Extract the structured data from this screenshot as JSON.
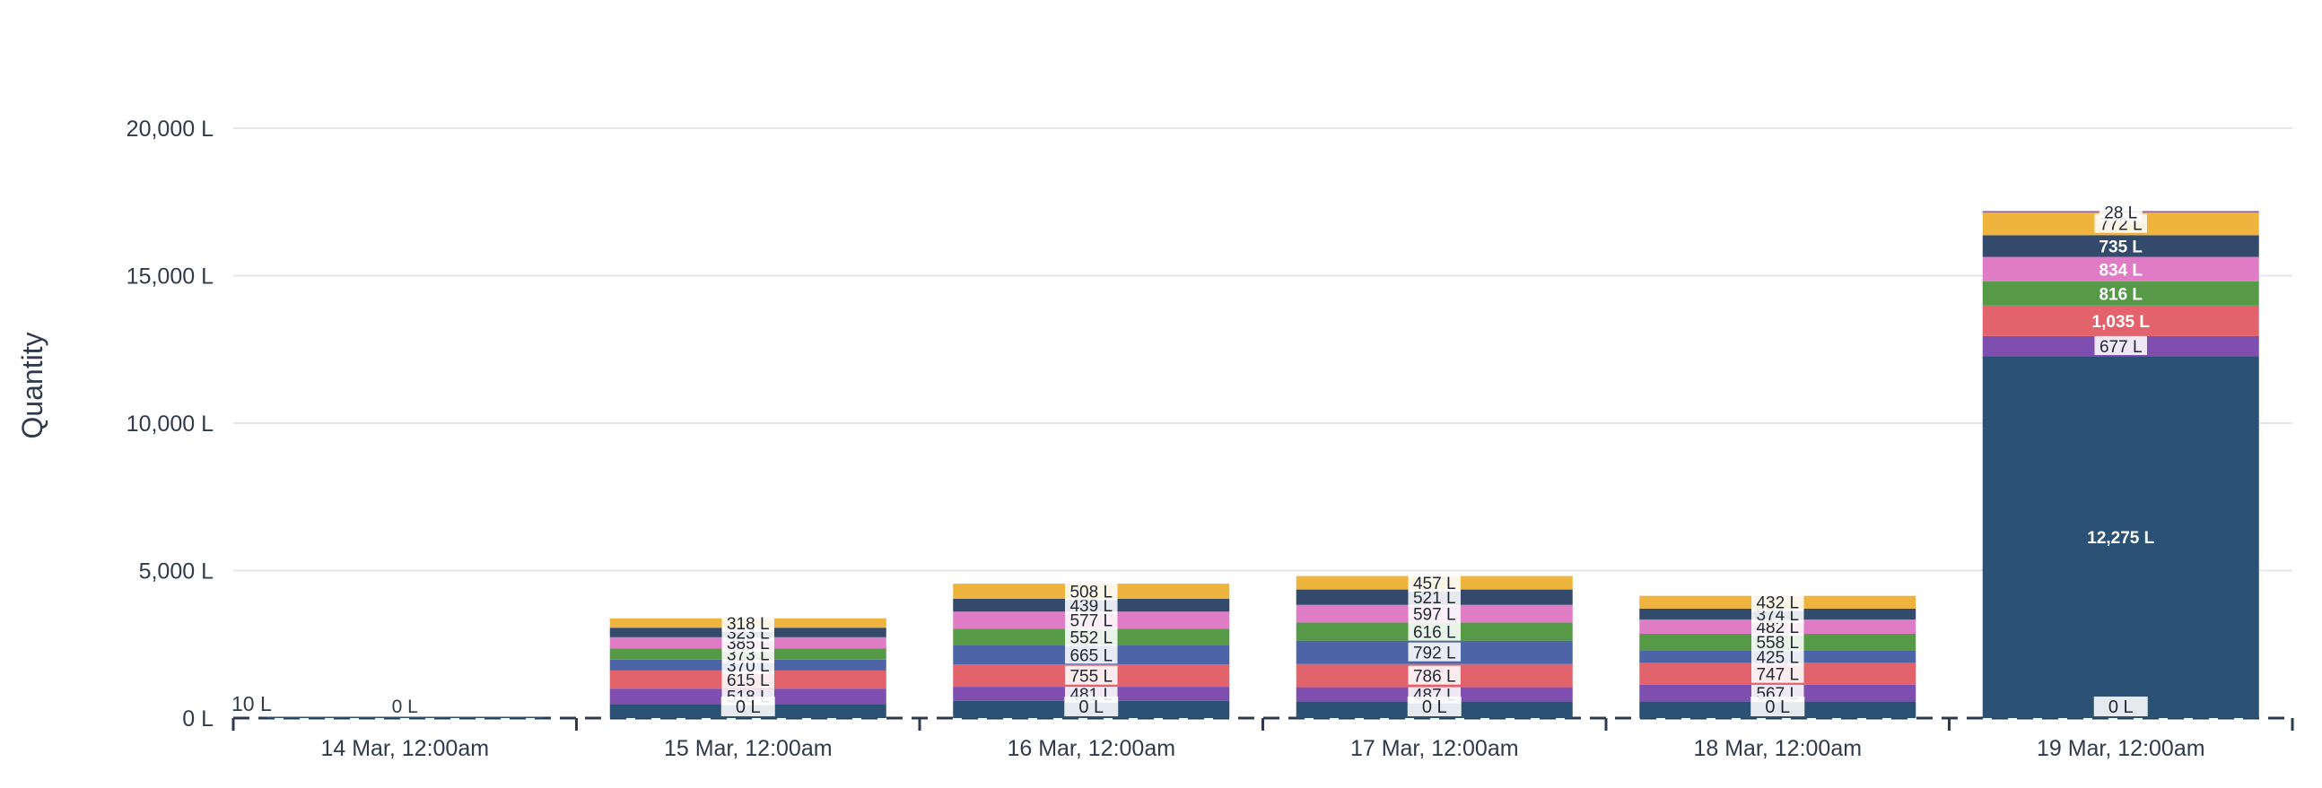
{
  "chart_data": {
    "type": "bar",
    "stacked": true,
    "xlabel": "",
    "ylabel": "Quantity",
    "ylim": [
      0,
      20000
    ],
    "yticks": [
      {
        "value": 0,
        "label": "0 L"
      },
      {
        "value": 5000,
        "label": "5,000 L"
      },
      {
        "value": 10000,
        "label": "10,000 L"
      },
      {
        "value": 15000,
        "label": "15,000 L"
      },
      {
        "value": 20000,
        "label": "20,000 L"
      }
    ],
    "grid": true,
    "categories": [
      "14 Mar, 12:00am",
      "15 Mar, 12:00am",
      "16 Mar, 12:00am",
      "17 Mar, 12:00am",
      "18 Mar, 12:00am",
      "19 Mar, 12:00am"
    ],
    "series": [
      {
        "color": "#2b5174",
        "values": [
          10,
          480,
          580,
          560,
          560,
          12275
        ],
        "labels": [
          "10 L",
          "",
          "",
          "",
          "",
          "12,275 L"
        ]
      },
      {
        "color": "#7f4fb0",
        "values": [
          0,
          518,
          481,
          487,
          567,
          677
        ],
        "labels": [
          "",
          "518 L",
          "481 L",
          "487 L",
          "567 L",
          "677 L"
        ]
      },
      {
        "color": "#e2636b",
        "values": [
          0,
          615,
          755,
          786,
          747,
          1035
        ],
        "labels": [
          "",
          "615 L",
          "755 L",
          "786 L",
          "747 L",
          "1,035 L"
        ]
      },
      {
        "color": "#4d64a6",
        "values": [
          0,
          370,
          665,
          792,
          425,
          0
        ],
        "labels": [
          "",
          "370 L",
          "665 L",
          "792 L",
          "425 L",
          ""
        ]
      },
      {
        "color": "#569a47",
        "values": [
          0,
          373,
          552,
          616,
          558,
          816
        ],
        "labels": [
          "",
          "373 L",
          "552 L",
          "616 L",
          "558 L",
          "816 L"
        ]
      },
      {
        "color": "#e07cc6",
        "values": [
          0,
          385,
          577,
          597,
          482,
          834
        ],
        "labels": [
          "",
          "385 L",
          "577 L",
          "597 L",
          "482 L",
          "834 L"
        ]
      },
      {
        "color": "#334a6c",
        "values": [
          0,
          323,
          439,
          521,
          374,
          735
        ],
        "labels": [
          "",
          "323 L",
          "439 L",
          "521 L",
          "374 L",
          "735 L"
        ]
      },
      {
        "color": "#efb43d",
        "values": [
          0,
          318,
          508,
          457,
          432,
          772
        ],
        "labels": [
          "",
          "318 L",
          "508 L",
          "457 L",
          "432 L",
          "772 L"
        ]
      },
      {
        "color": "#8b5a86",
        "values": [
          0,
          0,
          0,
          0,
          0,
          28
        ],
        "labels": [
          "",
          "",
          "",
          "",
          "",
          "28 L"
        ]
      }
    ],
    "bottom_labels": [
      "0 L",
      "0 L",
      "0 L",
      "0 L",
      "0 L",
      "0 L"
    ]
  }
}
